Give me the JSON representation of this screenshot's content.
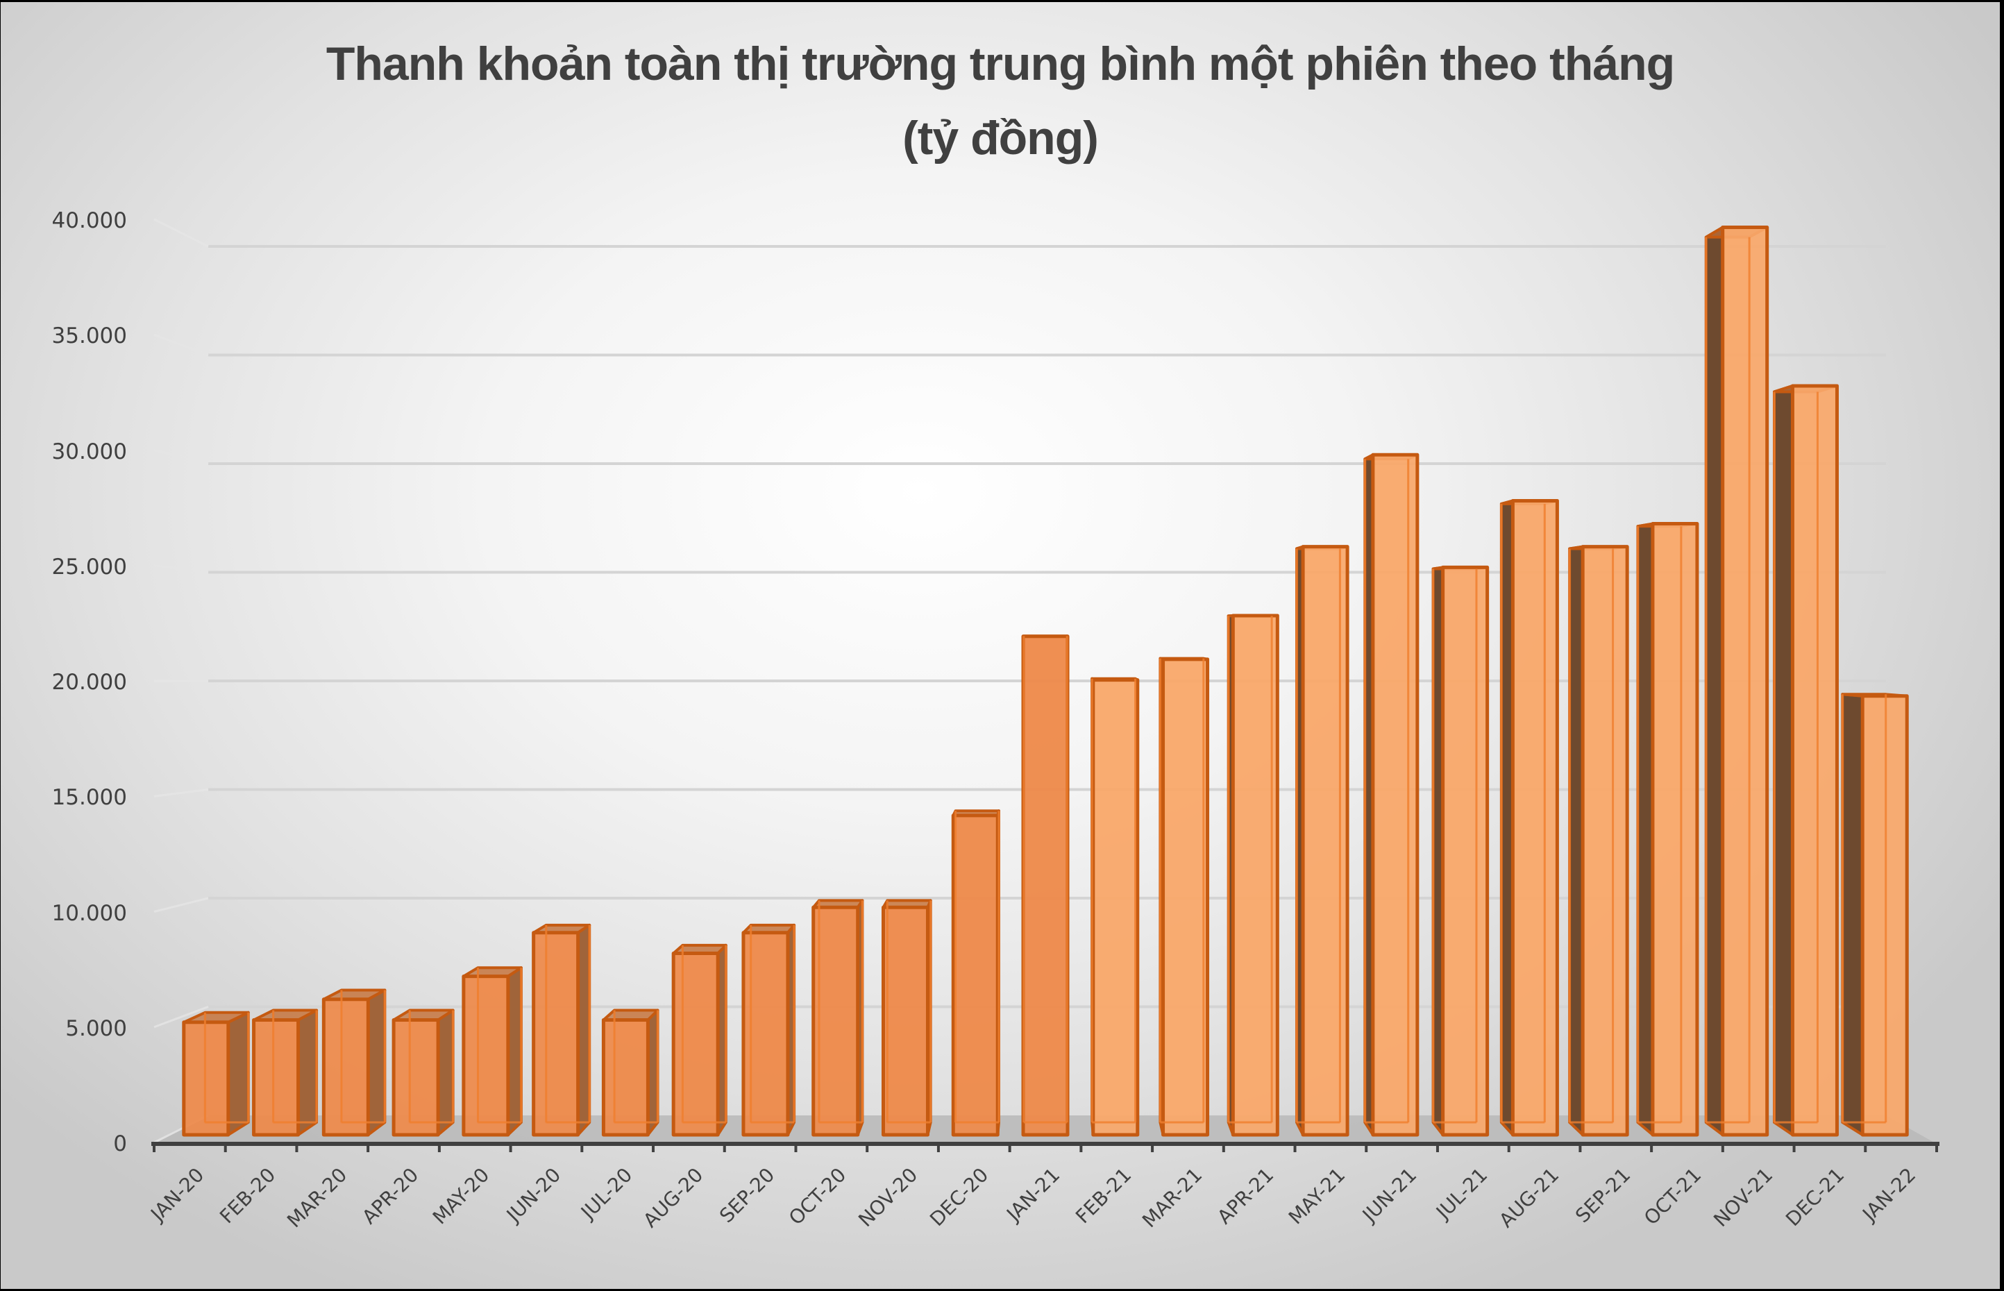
{
  "title": {
    "line1": "Thanh khoản toàn thị trường trung bình một phiên theo tháng",
    "line2": "(tỷ đồng)"
  },
  "y_axis": {
    "ticks": [
      "0",
      "5.000",
      "10.000",
      "15.000",
      "20.000",
      "25.000",
      "30.000",
      "35.000",
      "40.000"
    ]
  },
  "colors": {
    "bar_front": "#F08A48",
    "bar_outline": "#C55A11",
    "bar_side_left_group": "#A0643A",
    "bar_side_right_group": "#6E4A2F",
    "floor": "#B8B8B8",
    "axis": "#404040",
    "gridline": "#D4D4D4",
    "text": "#404040"
  },
  "chart_data": {
    "type": "bar",
    "style": "3d-column-perspective",
    "title": "Thanh khoản toàn thị trường trung bình một phiên theo tháng (tỷ đồng)",
    "xlabel": "",
    "ylabel": "",
    "ylim": [
      0,
      40000
    ],
    "grid": true,
    "legend": "none",
    "y_ticks": [
      0,
      5000,
      10000,
      15000,
      20000,
      25000,
      30000,
      35000,
      40000
    ],
    "categories": [
      "JAN-20",
      "FEB-20",
      "MAR-20",
      "APR-20",
      "MAY-20",
      "JUN-20",
      "JUL-20",
      "AUG-20",
      "SEP-20",
      "OCT-20",
      "NOV-20",
      "DEC-20",
      "JAN-21",
      "FEB-21",
      "MAR-21",
      "APR-21",
      "MAY-21",
      "JUN-21",
      "JUL-21",
      "AUG-21",
      "SEP-21",
      "OCT-21",
      "NOV-21",
      "DEC-21",
      "JAN-22"
    ],
    "values": [
      4900,
      5000,
      5900,
      5000,
      6900,
      8800,
      5000,
      7900,
      8800,
      9900,
      9900,
      13900,
      21700,
      19800,
      20700,
      22600,
      25600,
      29600,
      24700,
      27600,
      25600,
      26600,
      39500,
      32600,
      19100
    ]
  }
}
